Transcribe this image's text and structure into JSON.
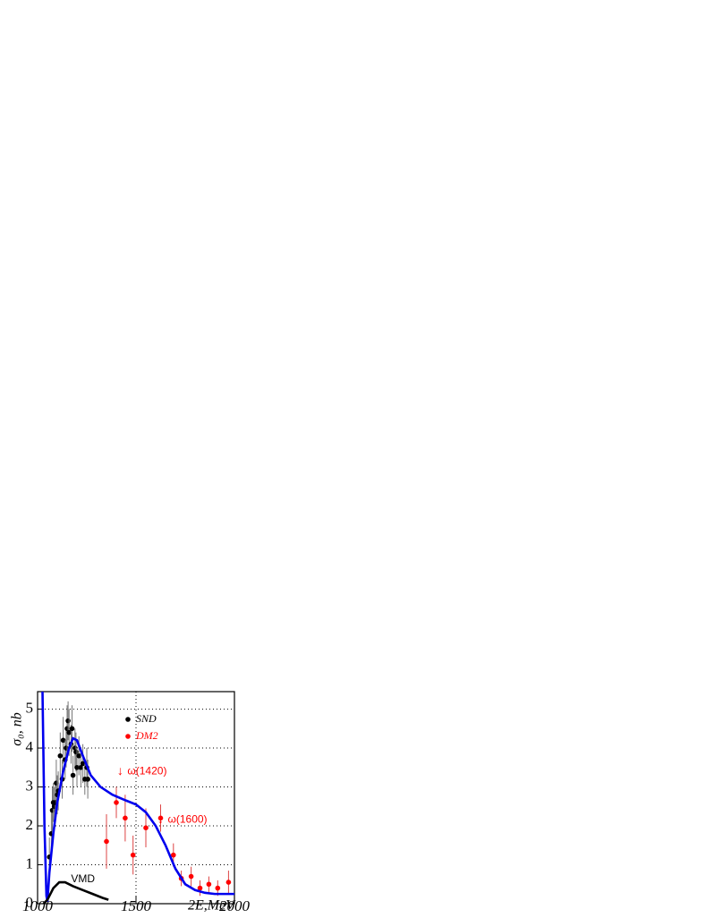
{
  "chart_data": {
    "type": "scatter",
    "xlabel": "2E,MeV",
    "ylabel": "σ₀, nb",
    "xlim": [
      1000,
      2000
    ],
    "ylim": [
      0,
      5.45
    ],
    "xticks": [
      1000,
      1500,
      2000
    ],
    "yticks": [
      0,
      1,
      2,
      3,
      4,
      5
    ],
    "grid": true,
    "legend": "upper right",
    "series": [
      {
        "name": "SND",
        "color": "#000000",
        "kind": "points",
        "x": [
          1060,
          1070,
          1075,
          1080,
          1085,
          1090,
          1095,
          1100,
          1105,
          1115,
          1125,
          1130,
          1140,
          1145,
          1150,
          1155,
          1160,
          1170,
          1175,
          1180,
          1190,
          1195,
          1200,
          1210,
          1220,
          1230,
          1240,
          1250,
          1255
        ],
        "values": [
          1.2,
          1.8,
          2.4,
          2.6,
          2.5,
          2.6,
          3.1,
          2.8,
          2.9,
          3.8,
          3.2,
          4.2,
          3.7,
          4.0,
          4.5,
          4.7,
          4.4,
          4.1,
          4.5,
          3.3,
          4.0,
          3.9,
          3.5,
          3.8,
          3.5,
          3.6,
          3.2,
          3.5,
          3.2
        ],
        "errors": [
          0.5,
          0.6,
          0.6,
          0.5,
          0.5,
          0.5,
          0.6,
          0.5,
          0.5,
          0.6,
          0.5,
          0.6,
          0.5,
          0.5,
          0.6,
          0.5,
          0.6,
          0.5,
          0.6,
          0.5,
          0.5,
          0.5,
          0.5,
          0.5,
          0.5,
          0.5,
          0.4,
          0.5,
          0.5
        ]
      },
      {
        "name": "DM2",
        "color": "#ff0000",
        "kind": "points",
        "x": [
          1350,
          1400,
          1445,
          1485,
          1550,
          1625,
          1690,
          1730,
          1780,
          1825,
          1870,
          1915,
          1970
        ],
        "values": [
          1.6,
          2.6,
          2.2,
          1.25,
          1.95,
          2.2,
          1.25,
          0.65,
          0.7,
          0.4,
          0.5,
          0.4,
          0.55
        ],
        "errors": [
          0.7,
          0.4,
          0.6,
          0.5,
          0.5,
          0.35,
          0.3,
          0.2,
          0.25,
          0.2,
          0.2,
          0.2,
          0.3
        ]
      },
      {
        "name": "fit",
        "color": "#0000ee",
        "kind": "line",
        "legend": false,
        "x": [
          1025,
          1035,
          1045,
          1050,
          1060,
          1080,
          1100,
          1130,
          1160,
          1180,
          1200,
          1230,
          1270,
          1320,
          1380,
          1450,
          1500,
          1550,
          1600,
          1650,
          1700,
          1750,
          1800,
          1850,
          1900,
          2000
        ],
        "values": [
          5.45,
          2.0,
          0.2,
          0.05,
          0.8,
          1.8,
          2.6,
          3.4,
          4.0,
          4.25,
          4.2,
          3.8,
          3.3,
          3.0,
          2.8,
          2.65,
          2.55,
          2.35,
          2.0,
          1.5,
          0.9,
          0.5,
          0.35,
          0.28,
          0.25,
          0.25
        ]
      },
      {
        "name": "VMD",
        "color": "#000000",
        "kind": "line",
        "legend": false,
        "x": [
          1030,
          1050,
          1080,
          1110,
          1140,
          1180,
          1230,
          1280,
          1330,
          1360
        ],
        "values": [
          0,
          0.1,
          0.4,
          0.55,
          0.55,
          0.45,
          0.35,
          0.25,
          0.15,
          0.1
        ]
      }
    ],
    "annotations": [
      {
        "text": "ω(1420)",
        "x": 1420,
        "y": 3.4,
        "color": "#ff0000"
      },
      {
        "text": "ω(1600)",
        "x": 1625,
        "y": 2.15,
        "color": "#ff0000"
      },
      {
        "text": "VMD",
        "x": 1170,
        "y": 0.62,
        "color": "#000000"
      }
    ]
  }
}
